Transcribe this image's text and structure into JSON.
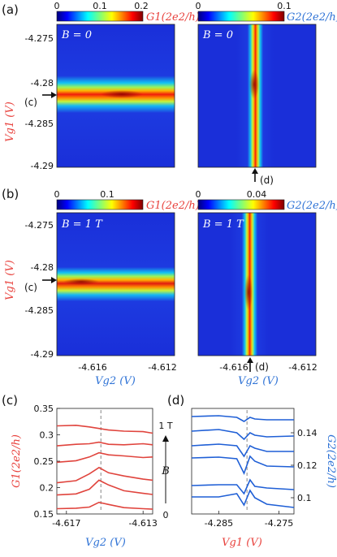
{
  "colors": {
    "red_axis": "#e8413c",
    "blue_axis": "#2f73d6",
    "trace_red": "#e0443d",
    "trace_blue": "#1f5fd6",
    "dashed": "#9a9a9a"
  },
  "panel_labels": {
    "a": "(a)",
    "b": "(b)",
    "c": "(c)",
    "d": "(d)"
  },
  "top": {
    "colorbars": [
      {
        "id": "a-left",
        "ticks": [
          "0",
          "0.1",
          "0.2"
        ],
        "label": "G1(2e2/h)"
      },
      {
        "id": "a-right",
        "ticks": [
          "0",
          "0.1"
        ],
        "label": "G2(2e2/h)"
      },
      {
        "id": "b-left",
        "ticks": [
          "0",
          "0.1"
        ],
        "label": "G1(2e2/h)"
      },
      {
        "id": "b-right",
        "ticks": [
          "0",
          "0.04"
        ],
        "label": "G2(2e2/h)"
      }
    ],
    "field_labels": {
      "a": "B = 0",
      "b": "B = 1 T"
    },
    "ylabel": "Vg1 (V)",
    "xlabel": "Vg2 (V)",
    "y_ticks": [
      "-4.275",
      "-4.28",
      "-4.285",
      "-4.29"
    ],
    "x_ticks": [
      "-4.616",
      "-4.612"
    ],
    "cut_markers": {
      "c": "(c)",
      "d": "(d)"
    }
  },
  "chart_data": [
    {
      "type": "heatmap",
      "panel": "a-left",
      "quantity": "G1",
      "field": "B = 0",
      "x_range": [
        -4.6175,
        -4.6115
      ],
      "ylim": [
        -4.29,
        -4.2725
      ],
      "feature": "horizontal resonance line",
      "center_vg1": -4.2812,
      "peak": 0.2
    },
    {
      "type": "heatmap",
      "panel": "a-right",
      "quantity": "G2",
      "field": "B = 0",
      "x_range": [
        -4.6175,
        -4.6115
      ],
      "ylim": [
        -4.29,
        -4.2725
      ],
      "feature": "vertical resonance line",
      "center_vg2": -4.6155,
      "peak": 0.1
    },
    {
      "type": "heatmap",
      "panel": "b-left",
      "quantity": "G1",
      "field": "B = 1 T",
      "x_range": [
        -4.6175,
        -4.6115
      ],
      "ylim": [
        -4.29,
        -4.2725
      ],
      "feature": "horizontal resonance line",
      "center_vg1": -4.2808,
      "peak": 0.1
    },
    {
      "type": "heatmap",
      "panel": "b-right",
      "quantity": "G2",
      "field": "B = 1 T",
      "x_range": [
        -4.6175,
        -4.6115
      ],
      "ylim": [
        -4.29,
        -4.2725
      ],
      "feature": "vertical resonance line",
      "center_vg2": -4.6157,
      "peak": 0.04
    },
    {
      "type": "line",
      "panel": "c",
      "xlabel": "Vg2 (V)",
      "ylabel": "G1(2e2/h)",
      "x_ticks": [
        "-4.617",
        "-4.613"
      ],
      "y_ticks": [
        "0.35",
        "0.3",
        "0.25",
        "0.2",
        "0.15"
      ],
      "xlim": [
        -4.6175,
        -4.6125
      ],
      "ylim": [
        0.15,
        0.35
      ],
      "dashed_x": -4.6152,
      "series": [
        {
          "values_x": [
            -4.6175,
            -4.6165,
            -4.6158,
            -4.6153,
            -4.6148,
            -4.614,
            -4.613,
            -4.6125
          ],
          "values": [
            0.16,
            0.161,
            0.163,
            0.172,
            0.168,
            0.162,
            0.16,
            0.159
          ]
        },
        {
          "values_x": [
            -4.6175,
            -4.6165,
            -4.6158,
            -4.6153,
            -4.6148,
            -4.614,
            -4.613,
            -4.6125
          ],
          "values": [
            0.186,
            0.188,
            0.197,
            0.214,
            0.205,
            0.194,
            0.189,
            0.187
          ]
        },
        {
          "values_x": [
            -4.6175,
            -4.6165,
            -4.6158,
            -4.6153,
            -4.6148,
            -4.614,
            -4.613,
            -4.6125
          ],
          "values": [
            0.209,
            0.213,
            0.226,
            0.238,
            0.228,
            0.222,
            0.216,
            0.214
          ]
        },
        {
          "values_x": [
            -4.6175,
            -4.6165,
            -4.6158,
            -4.6153,
            -4.6148,
            -4.614,
            -4.613,
            -4.6125
          ],
          "values": [
            0.248,
            0.251,
            0.258,
            0.266,
            0.262,
            0.26,
            0.257,
            0.258
          ]
        },
        {
          "values_x": [
            -4.6175,
            -4.6165,
            -4.6158,
            -4.6153,
            -4.6148,
            -4.614,
            -4.613,
            -4.6125
          ],
          "values": [
            0.279,
            0.282,
            0.283,
            0.286,
            0.282,
            0.281,
            0.283,
            0.281
          ]
        },
        {
          "values_x": [
            -4.6175,
            -4.6165,
            -4.6158,
            -4.6153,
            -4.6148,
            -4.614,
            -4.613,
            -4.6125
          ],
          "values": [
            0.317,
            0.318,
            0.315,
            0.312,
            0.309,
            0.307,
            0.306,
            0.303
          ]
        }
      ]
    },
    {
      "type": "line",
      "panel": "d",
      "xlabel": "Vg1 (V)",
      "ylabel": "G2(2e2/h)",
      "x_ticks": [
        "-4.285",
        "-4.275"
      ],
      "y_ticks": [
        "0.14",
        "0.12",
        "0.1"
      ],
      "xlim": [
        -4.2895,
        -4.2725
      ],
      "ylim": [
        0.09,
        0.155
      ],
      "dashed_x": -4.2803,
      "series": [
        {
          "values_x": [
            -4.2895,
            -4.285,
            -4.282,
            -4.2808,
            -4.2798,
            -4.279,
            -4.277,
            -4.2725
          ],
          "values": [
            0.1005,
            0.1005,
            0.1025,
            0.0955,
            0.1045,
            0.1,
            0.096,
            0.094
          ]
        },
        {
          "values_x": [
            -4.2895,
            -4.285,
            -4.282,
            -4.2808,
            -4.2798,
            -4.279,
            -4.277,
            -4.2725
          ],
          "values": [
            0.1075,
            0.108,
            0.108,
            0.1025,
            0.111,
            0.107,
            0.106,
            0.105
          ]
        },
        {
          "values_x": [
            -4.2895,
            -4.285,
            -4.282,
            -4.2808,
            -4.2798,
            -4.279,
            -4.277,
            -4.2725
          ],
          "values": [
            0.1245,
            0.125,
            0.124,
            0.115,
            0.1255,
            0.1225,
            0.1195,
            0.119
          ]
        },
        {
          "values_x": [
            -4.2895,
            -4.285,
            -4.282,
            -4.2808,
            -4.2798,
            -4.279,
            -4.277,
            -4.2725
          ],
          "values": [
            0.132,
            0.133,
            0.132,
            0.1255,
            0.132,
            0.1305,
            0.1285,
            0.1285
          ]
        },
        {
          "values_x": [
            -4.2895,
            -4.285,
            -4.282,
            -4.2808,
            -4.2798,
            -4.279,
            -4.277,
            -4.2725
          ],
          "values": [
            0.141,
            0.142,
            0.14,
            0.136,
            0.14,
            0.1385,
            0.1375,
            0.138
          ]
        },
        {
          "values_x": [
            -4.2895,
            -4.285,
            -4.282,
            -4.2808,
            -4.2798,
            -4.279,
            -4.277,
            -4.2725
          ],
          "values": [
            0.15,
            0.1505,
            0.1495,
            0.147,
            0.1495,
            0.1485,
            0.148,
            0.148
          ]
        }
      ]
    }
  ],
  "field_axis": {
    "top": "1 T",
    "label": "B",
    "bottom": "0"
  }
}
